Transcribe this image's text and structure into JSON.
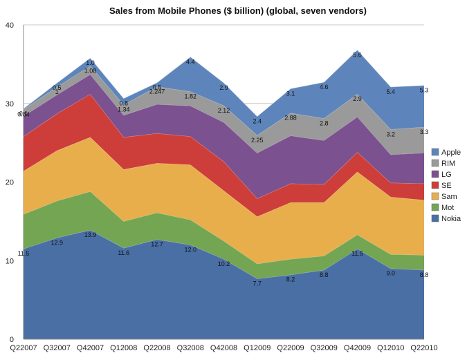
{
  "chart_data": {
    "type": "area",
    "stacked": true,
    "title": "Sales from Mobile Phones ($ billion) (global, seven vendors)",
    "xlabel": "",
    "ylabel": "",
    "ylim": [
      0,
      40
    ],
    "yticks": [
      0,
      10,
      20,
      30,
      40
    ],
    "grid": true,
    "legend_position": "right",
    "categories": [
      "Q22007",
      "Q32007",
      "Q42007",
      "Q12008",
      "Q22008",
      "Q32008",
      "Q42008",
      "Q12009",
      "Q22009",
      "Q32009",
      "Q42009",
      "Q12010",
      "Q22010"
    ],
    "series": [
      {
        "name": "Nokia",
        "color": "#4a6fa5",
        "values": [
          11.5,
          12.9,
          13.9,
          11.6,
          12.7,
          12.0,
          10.2,
          7.7,
          8.2,
          8.8,
          11.5,
          9.0,
          8.8
        ]
      },
      {
        "name": "Mot",
        "color": "#73a553",
        "values": [
          4.4,
          4.7,
          4.9,
          3.4,
          3.4,
          3.2,
          2.3,
          1.9,
          2.0,
          1.8,
          1.8,
          1.8,
          1.9
        ]
      },
      {
        "name": "Sam",
        "color": "#e8ae4c",
        "values": [
          5.5,
          6.4,
          6.9,
          6.6,
          6.3,
          7.0,
          6.4,
          6.0,
          7.2,
          6.8,
          8.0,
          7.3,
          7.0
        ]
      },
      {
        "name": "SE",
        "color": "#cd3e3a",
        "values": [
          4.4,
          4.7,
          5.5,
          4.1,
          3.8,
          3.6,
          3.7,
          2.3,
          2.4,
          2.3,
          2.5,
          1.8,
          2.1
        ]
      },
      {
        "name": "LG",
        "color": "#7c518f",
        "values": [
          2.6,
          2.4,
          2.5,
          2.8,
          3.7,
          3.9,
          5.0,
          5.8,
          6.1,
          5.6,
          4.5,
          3.6,
          3.9
        ]
      },
      {
        "name": "RIM",
        "color": "#9a9a9a",
        "values": [
          0.84,
          1.0,
          1.08,
          1.34,
          2.247,
          1.82,
          2.12,
          2.25,
          2.88,
          2.8,
          2.9,
          3.2,
          3.3
        ]
      },
      {
        "name": "Apple",
        "color": "#5d85bb",
        "values": [
          0.1,
          0.5,
          1.0,
          0.8,
          0.5,
          4.4,
          2.9,
          2.4,
          3.1,
          4.6,
          5.6,
          5.4,
          5.3
        ]
      }
    ],
    "data_labels": {
      "Nokia": [
        "11.5",
        "12.9",
        "13.9",
        "11.6",
        "12.7",
        "12.0",
        "10.2",
        "7.7",
        "8.2",
        "8.8",
        "11.5",
        "9.0",
        "8.8"
      ],
      "RIM": [
        "0.84",
        "1",
        "1.08",
        "1.34",
        "2.247",
        "1.82",
        "2.12",
        "2.25",
        "2.88",
        "2.8",
        "2.9",
        "3.2",
        "3.3"
      ],
      "Apple": [
        "0.1",
        "0.5",
        "1.0",
        "0.8",
        "0.5",
        "4.4",
        "2.9",
        "2.4",
        "3.1",
        "4.6",
        "5.6",
        "5.4",
        "5.3"
      ]
    }
  }
}
